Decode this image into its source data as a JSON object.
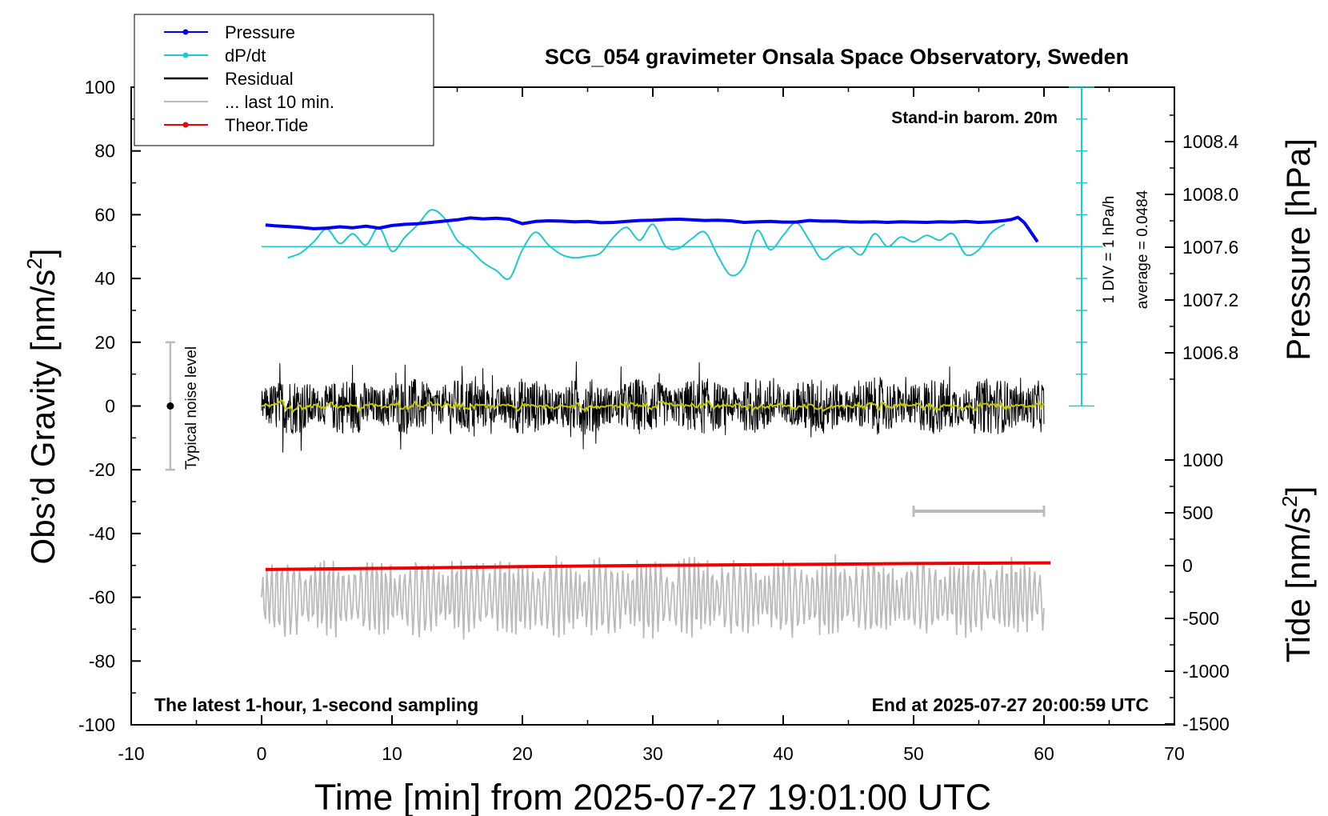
{
  "chart_data": {
    "type": "line",
    "title": "SCG_054 gravimeter Onsala Space Observatory, Sweden",
    "xlabel": "Time [min] from 2025-07-27 19:01:00 UTC",
    "ylabel_left_main": "Obs’d Gravity [nm/s",
    "ylabel_left_sup": "2",
    "ylabel_left_end": "]",
    "ylabel_right_top": "Pressure [hPa]",
    "ylabel_right_bottom_main": "Tide [nm/s",
    "ylabel_right_bottom_sup": "2",
    "ylabel_right_bottom_end": "]",
    "xlim": [
      -10,
      70
    ],
    "ylim": [
      -100,
      100
    ],
    "x_ticks": [
      "-10",
      "0",
      "10",
      "20",
      "30",
      "40",
      "50",
      "60",
      "70"
    ],
    "y_ticks": [
      "100",
      "80",
      "60",
      "40",
      "20",
      "0",
      "-20",
      "-40",
      "-60",
      "-80",
      "-100"
    ],
    "pressure_axis": {
      "ticks": [
        "1008.4",
        "1008.0",
        "1007.6",
        "1007.2",
        "1006.8"
      ],
      "tick_values": [
        1008.4,
        1008.0,
        1007.6,
        1007.2,
        1006.8
      ]
    },
    "tide_axis": {
      "ticks": [
        "1000",
        "500",
        "0",
        "-500",
        "-1000",
        "-1500"
      ],
      "tick_values": [
        1000,
        500,
        0,
        -500,
        -1000,
        -1500
      ]
    },
    "annotations": {
      "stand_in": "Stand-in barom. 20m",
      "div": "1 DIV = 1 hPa/h",
      "average": "average = 0.0484",
      "noise_label": "Typical noise level",
      "latest": "The latest 1-hour, 1-second sampling",
      "end_at": "End at 2025-07-27 20:00:59 UTC"
    },
    "legend": {
      "placement": "top-left",
      "entries": [
        "Pressure",
        "dP/dt",
        "Residual",
        "... last 10 min.",
        "Theor.Tide"
      ]
    },
    "colors": {
      "pressure": "#0000ee",
      "dpdt": "#22c8c8",
      "residual": "#000000",
      "residual_smooth": "#c8c800",
      "last10": "#bbbbbb",
      "tide": "#ee0000"
    },
    "series": [
      {
        "name": "Pressure",
        "x": [
          0.3,
          1,
          2,
          3,
          4,
          5,
          6,
          7,
          8,
          9,
          10,
          11,
          12,
          13,
          14,
          15,
          16,
          17,
          18,
          19,
          20,
          21,
          22,
          23,
          24,
          25,
          26,
          27,
          28,
          29,
          30,
          31,
          32,
          33,
          34,
          35,
          36,
          37,
          38,
          39,
          40,
          41,
          42,
          43,
          44,
          45,
          46,
          47,
          48,
          49,
          50,
          51,
          52,
          53,
          54,
          55,
          56,
          57,
          57.5,
          58,
          58.5,
          59,
          59.5
        ],
        "y": [
          56.8,
          56.5,
          56.3,
          56.0,
          55.6,
          55.8,
          56.2,
          55.9,
          56.4,
          55.8,
          56.6,
          57.0,
          57.2,
          57.6,
          58.0,
          58.4,
          59.0,
          58.7,
          58.9,
          58.6,
          57.2,
          57.9,
          58.1,
          58.0,
          57.8,
          57.9,
          57.5,
          57.6,
          57.9,
          58.2,
          58.3,
          58.5,
          58.6,
          58.4,
          58.2,
          58.3,
          58.1,
          57.6,
          57.8,
          57.9,
          57.7,
          57.7,
          58.2,
          58.0,
          58.0,
          57.8,
          57.7,
          57.8,
          57.6,
          57.8,
          57.7,
          57.6,
          57.8,
          57.7,
          57.9,
          57.6,
          57.8,
          58.2,
          58.5,
          59.2,
          57.5,
          54.5,
          51.5
        ]
      },
      {
        "name": "dP/dt",
        "x": [
          2,
          3,
          4,
          5,
          6,
          7,
          8,
          9,
          10,
          11,
          12,
          13,
          14,
          15,
          16,
          17,
          18,
          19,
          20,
          21,
          22,
          23,
          24,
          25,
          26,
          27,
          28,
          29,
          30,
          31,
          32,
          33,
          34,
          35,
          36,
          37,
          38,
          39,
          40,
          41,
          42,
          43,
          44,
          45,
          46,
          47,
          48,
          49,
          50,
          51,
          52,
          53,
          54,
          55,
          56,
          57
        ],
        "y": [
          46.5,
          48.0,
          51.5,
          55.5,
          51.0,
          54.0,
          50.5,
          56.0,
          48.5,
          53.0,
          57.0,
          61.5,
          59.0,
          52.0,
          49.0,
          45.0,
          42.5,
          40.0,
          49.0,
          54.5,
          50.5,
          47.5,
          46.5,
          47.0,
          48.0,
          53.0,
          56.0,
          52.0,
          57.0,
          50.0,
          49.5,
          52.5,
          54.5,
          47.0,
          41.0,
          44.0,
          55.0,
          49.0,
          53.5,
          57.5,
          52.0,
          46.0,
          48.5,
          50.0,
          47.5,
          54.0,
          50.0,
          53.0,
          51.5,
          53.5,
          52.0,
          54.0,
          47.5,
          49.0,
          54.5,
          57.0
        ]
      },
      {
        "name": "Residual",
        "x_range": [
          0,
          60
        ],
        "y_approx_range": [
          -15,
          17
        ]
      },
      {
        "name": "... last 10 min.",
        "x_range": [
          0,
          60
        ],
        "y_approx_range": [
          -75,
          -45
        ]
      },
      {
        "name": "Theor.Tide",
        "x": [
          0.3,
          10,
          20,
          30,
          40,
          50,
          60.5
        ],
        "y": [
          -51.3,
          -50.9,
          -50.4,
          -50.0,
          -49.7,
          -49.4,
          -49.2
        ]
      }
    ],
    "dpdt_zero_line_y": 50,
    "noise_bar": {
      "x": -7,
      "y_low": -20,
      "y_high": 20
    },
    "range_bar": {
      "x_start": 50,
      "x_end": 60,
      "y": -33
    }
  }
}
